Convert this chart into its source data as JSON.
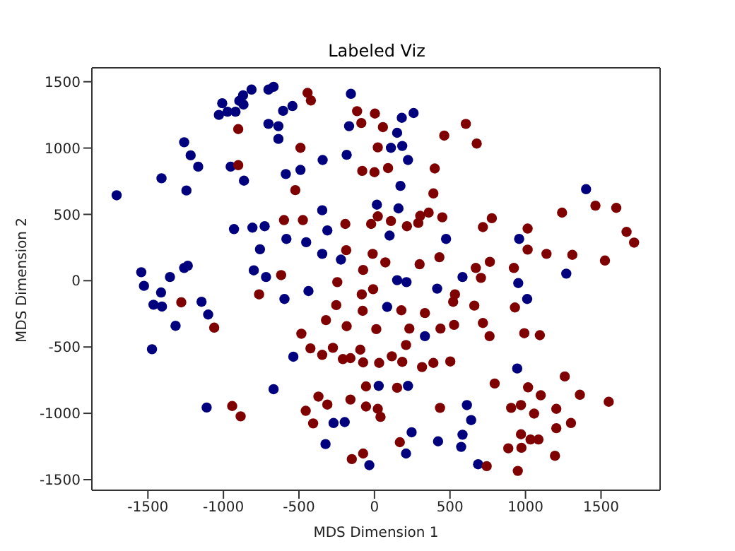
{
  "chart_data": {
    "type": "scatter",
    "title": "Labeled Viz",
    "xlabel": "MDS Dimension 1",
    "ylabel": "MDS Dimension 2",
    "xlim": [
      -1871,
      1891
    ],
    "ylim": [
      -1580,
      1605
    ],
    "xticks": [
      -1500,
      -1000,
      -500,
      0,
      500,
      1000,
      1500
    ],
    "yticks": [
      -1500,
      -1000,
      -500,
      0,
      500,
      1000,
      1500
    ],
    "legend": false,
    "marker": "circle",
    "series": [
      {
        "color": "#00007f",
        "x": [
          -1707,
          -1544,
          -1526,
          -1463,
          -1407,
          -1413,
          -1354,
          -1317,
          -1473,
          -1260,
          -1236,
          -1145,
          -1101,
          -1111,
          -1410,
          -1260,
          -1217,
          -1167,
          -1245,
          -1030,
          -1008,
          -973,
          -920,
          -895,
          -870,
          -867,
          -814,
          -702,
          -668,
          -605,
          -543,
          -702,
          -636,
          -636,
          -952,
          -864,
          -587,
          -490,
          -343,
          -184,
          -156,
          -168,
          -930,
          -808,
          -727,
          -758,
          -799,
          -718,
          -583,
          -452,
          -346,
          -312,
          -346,
          -222,
          -437,
          -596,
          -537,
          -668,
          -324,
          -271,
          -197,
          -34,
          28,
          222,
          209,
          246,
          84,
          212,
          150,
          100,
          16,
          159,
          172,
          222,
          109,
          184,
          150,
          181,
          259,
          334,
          415,
          474,
          421,
          612,
          640,
          583,
          574,
          686,
          583,
          945,
          952,
          1011,
          958,
          1270,
          1401
        ],
        "values": [
          644,
          64,
          -39,
          -181,
          -195,
          -89,
          28,
          -340,
          -517,
          96,
          113,
          -159,
          -255,
          -956,
          772,
          1044,
          945,
          860,
          680,
          1250,
          1338,
          1274,
          1274,
          1356,
          1398,
          1328,
          1441,
          1441,
          1462,
          1281,
          1317,
          1182,
          1165,
          1069,
          860,
          754,
          804,
          835,
          910,
          949,
          1409,
          1165,
          389,
          400,
          411,
          237,
          78,
          28,
          315,
          290,
          531,
          379,
          202,
          159,
          -78,
          -138,
          -573,
          -818,
          -1232,
          -1073,
          -1066,
          -1391,
          -793,
          -793,
          -1303,
          -1143,
          -198,
          -11,
          4,
          340,
          573,
          545,
          715,
          910,
          1002,
          1016,
          1115,
          1228,
          1264,
          -418,
          -60,
          315,
          -1211,
          -938,
          -1051,
          -1161,
          -1253,
          -1384,
          28,
          -662,
          -18,
          -138,
          315,
          53,
          690
        ]
      },
      {
        "color": "#7f0000",
        "x": [
          -443,
          -421,
          -902,
          -902,
          -490,
          -524,
          -599,
          -474,
          -618,
          -764,
          -1279,
          -1061,
          -942,
          -886,
          -484,
          -424,
          -321,
          -346,
          -275,
          -246,
          -253,
          -184,
          -209,
          -159,
          -94,
          -75,
          -84,
          -78,
          -75,
          -12,
          -9,
          12,
          31,
          115,
          184,
          178,
          231,
          209,
          315,
          390,
          502,
          334,
          437,
          527,
          521,
          533,
          430,
          299,
          72,
          -187,
          -193,
          -22,
          109,
          215,
          22,
          290,
          303,
          359,
          449,
          390,
          399,
          -81,
          0,
          90,
          22,
          56,
          3,
          -115,
          -87,
          462,
          605,
          677,
          718,
          777,
          671,
          705,
          764,
          923,
          1014,
          1014,
          1139,
          1310,
          1242,
          1463,
          1601,
          1669,
          1719,
          1526,
          661,
          718,
          762,
          930,
          992,
          1095,
          796,
          905,
          970,
          1017,
          1101,
          1057,
          1204,
          1260,
          1360,
          1551,
          1301,
          1204,
          970,
          1033,
          1086,
          973,
          886,
          1195,
          949,
          743,
          434,
          168,
          22,
          40,
          -56,
          -56,
          150,
          -159,
          -150,
          -75,
          -312,
          -371,
          -455,
          -406
        ],
        "values": [
          1416,
          1359,
          1143,
          871,
          1002,
          683,
          457,
          457,
          42,
          -103,
          -163,
          -354,
          -945,
          -1023,
          -400,
          -510,
          -297,
          -559,
          -506,
          -11,
          -184,
          -343,
          -591,
          -584,
          -520,
          -616,
          -103,
          -227,
          81,
          202,
          -64,
          -365,
          -620,
          -570,
          -612,
          -223,
          -361,
          -485,
          -651,
          -620,
          -609,
          -244,
          -361,
          -333,
          -159,
          -103,
          177,
          124,
          138,
          230,
          428,
          428,
          450,
          411,
          485,
          435,
          489,
          513,
          478,
          658,
          846,
          828,
          818,
          849,
          1005,
          1158,
          1260,
          1278,
          1189,
          1094,
          1182,
          1034,
          404,
          471,
          96,
          21,
          142,
          96,
          393,
          234,
          202,
          195,
          513,
          566,
          549,
          368,
          287,
          152,
          -188,
          -319,
          -418,
          -202,
          -396,
          -411,
          -775,
          -959,
          -938,
          -804,
          -864,
          -1002,
          -966,
          -722,
          -860,
          -913,
          -1073,
          -1112,
          -1158,
          -1197,
          -1197,
          -1260,
          -1264,
          -1320,
          -1434,
          -1398,
          -959,
          -1218,
          -966,
          -1027,
          -797,
          -949,
          -807,
          -896,
          -1345,
          -1303,
          -934,
          -874,
          -981,
          -1076
        ]
      }
    ]
  }
}
